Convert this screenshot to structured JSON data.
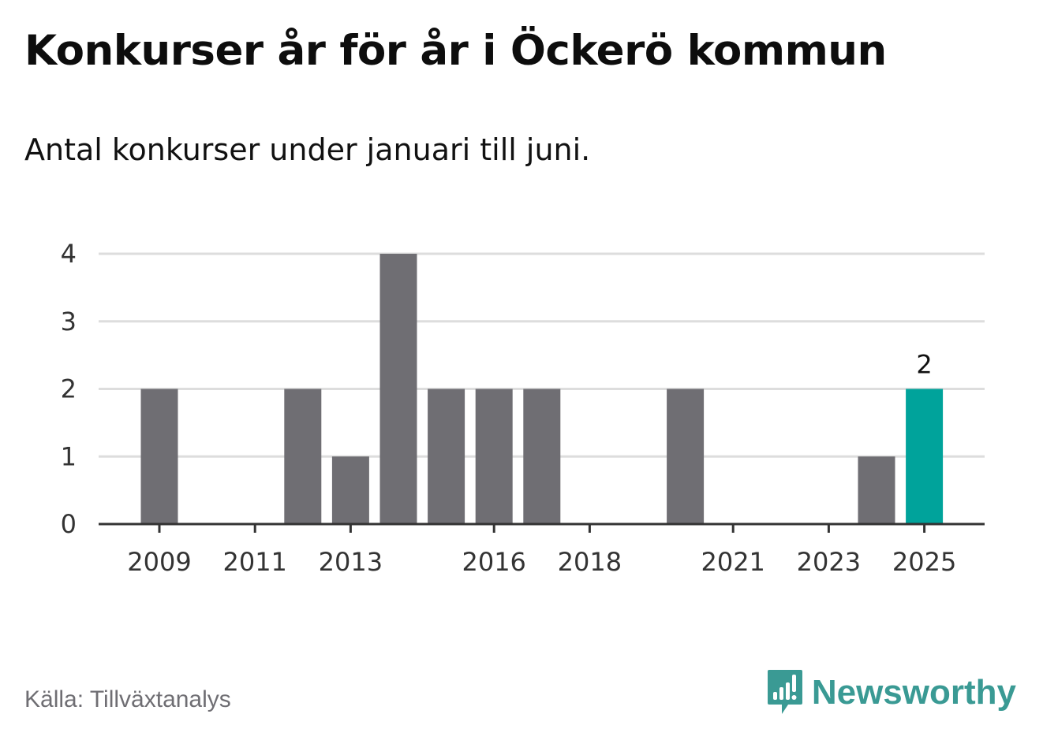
{
  "header": {
    "title": "Konkurser år för år i Öckerö kommun",
    "subtitle": "Antal konkurser under januari till juni."
  },
  "footer": {
    "source": "Källa: Tillväxtanalys",
    "brand": "Newsworthy"
  },
  "colors": {
    "bar": "#6f6e73",
    "highlight": "#00a39b",
    "grid": "#dddddd",
    "axis": "#333333",
    "brand": "#3a9a94"
  },
  "icons": {
    "brand_logo": "newsworthy-logo-icon"
  },
  "chart_data": {
    "type": "bar",
    "title": "Konkurser år för år i Öckerö kommun",
    "subtitle": "Antal konkurser under januari till juni.",
    "xlabel": "",
    "ylabel": "",
    "categories": [
      2009,
      2010,
      2011,
      2012,
      2013,
      2014,
      2015,
      2016,
      2017,
      2018,
      2019,
      2020,
      2021,
      2022,
      2023,
      2024,
      2025
    ],
    "values": [
      2,
      0,
      0,
      2,
      1,
      4,
      2,
      2,
      2,
      0,
      0,
      2,
      0,
      0,
      0,
      1,
      2
    ],
    "x_tick_labels": [
      "2009",
      "2011",
      "2013",
      "2016",
      "2018",
      "2021",
      "2023",
      "2025"
    ],
    "y_ticks": [
      "0",
      "1",
      "2",
      "3",
      "4"
    ],
    "ylim": [
      0,
      4
    ],
    "grid": true,
    "legend": "none",
    "highlight_category": 2025,
    "data_labels": [
      {
        "category": 2025,
        "text": "2"
      }
    ]
  }
}
